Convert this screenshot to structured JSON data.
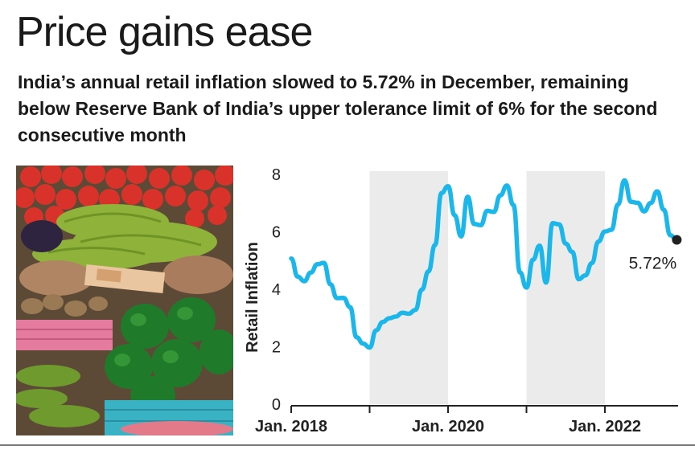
{
  "headline": "Price gains ease",
  "subtitle": "India’s annual retail inflation slowed to 5.72% in December, remaining below Reserve Bank of India’s upper tolerance limit of 6% for the second consecutive month",
  "colors": {
    "line": "#1bb6ea",
    "band": "#ebebeb",
    "axis": "#222222",
    "marker": "#222222"
  },
  "chart_data": {
    "type": "line",
    "title": "",
    "ylabel": "Retail Inflation",
    "xlabel": "",
    "ylim": [
      0,
      8
    ],
    "yticks": [
      "0",
      "2",
      "4",
      "6",
      "8"
    ],
    "xtick_labels": [
      "Jan. 2018",
      "Jan. 2020",
      "Jan. 2022"
    ],
    "grid": false,
    "shaded_years": [
      "2019",
      "2021"
    ],
    "annotation": "5.72%",
    "series": [
      {
        "x": [
          "2018-01",
          "2018-02",
          "2018-03",
          "2018-04",
          "2018-05",
          "2018-06",
          "2018-07",
          "2018-08",
          "2018-09",
          "2018-10",
          "2018-11",
          "2018-12",
          "2019-01",
          "2019-02",
          "2019-03",
          "2019-04",
          "2019-05",
          "2019-06",
          "2019-07",
          "2019-08",
          "2019-09",
          "2019-10",
          "2019-11",
          "2019-12",
          "2020-01",
          "2020-02",
          "2020-03",
          "2020-04",
          "2020-05",
          "2020-06",
          "2020-07",
          "2020-08",
          "2020-09",
          "2020-10",
          "2020-11",
          "2020-12",
          "2021-01",
          "2021-02",
          "2021-03",
          "2021-04",
          "2021-05",
          "2021-06",
          "2021-07",
          "2021-08",
          "2021-09",
          "2021-10",
          "2021-11",
          "2021-12",
          "2022-01",
          "2022-02",
          "2022-03",
          "2022-04",
          "2022-05",
          "2022-06",
          "2022-07",
          "2022-08",
          "2022-09",
          "2022-10",
          "2022-11",
          "2022-12"
        ],
        "values": [
          5.07,
          4.44,
          4.28,
          4.58,
          4.87,
          4.92,
          4.17,
          3.69,
          3.7,
          3.38,
          2.33,
          2.11,
          1.97,
          2.57,
          2.86,
          2.99,
          3.05,
          3.18,
          3.15,
          3.28,
          3.99,
          4.62,
          5.54,
          7.35,
          7.59,
          6.58,
          5.84,
          7.22,
          6.27,
          6.23,
          6.73,
          6.69,
          7.27,
          7.61,
          6.93,
          4.59,
          4.06,
          5.03,
          5.52,
          4.23,
          6.3,
          6.26,
          5.59,
          5.3,
          4.35,
          4.48,
          4.91,
          5.66,
          6.01,
          6.07,
          6.95,
          7.79,
          7.04,
          7.01,
          6.71,
          7.0,
          7.41,
          6.77,
          5.88,
          5.72
        ]
      }
    ]
  }
}
